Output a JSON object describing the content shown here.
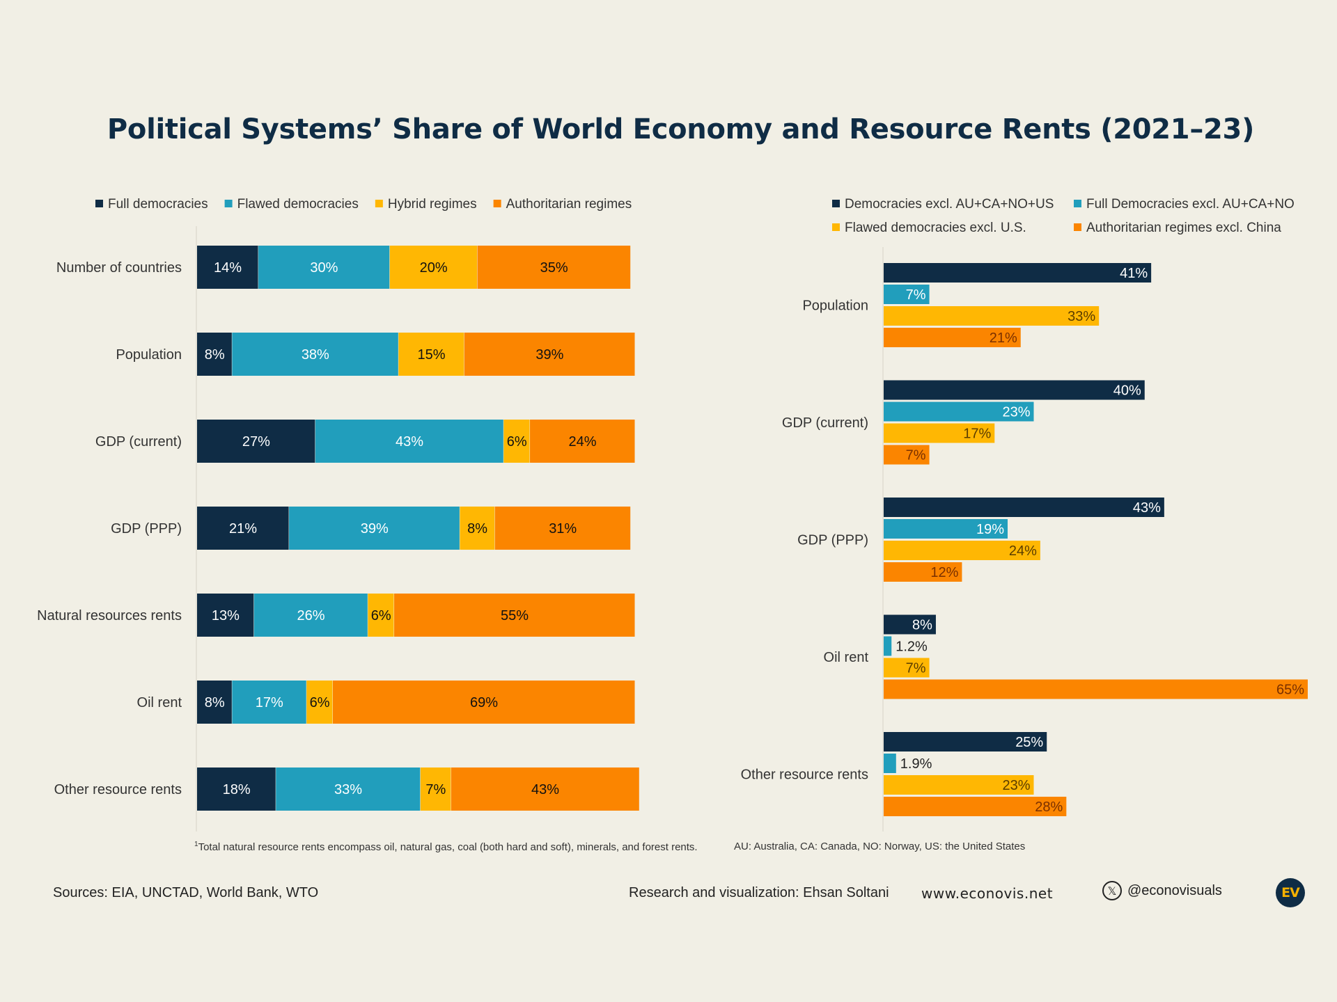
{
  "title": "Political Systems’ Share of World Economy and Resource Rents (2021–23)",
  "colors": {
    "full": "#0f2c45",
    "flawed": "#219ebc",
    "hybrid": "#ffb703",
    "authoritarian": "#fb8500"
  },
  "chart_data": [
    {
      "type": "bar",
      "orientation": "horizontal",
      "stacked": true,
      "unit": "%",
      "categories": [
        "Number of countries",
        "Population",
        "GDP (current)",
        "GDP (PPP)",
        "Natural resources rents",
        "Oil rent",
        "Other resource rents"
      ],
      "series": [
        {
          "name": "Full democracies",
          "color": "#0f2c45",
          "text_color": "#ffffff",
          "values": [
            14,
            8,
            27,
            21,
            13,
            8,
            18
          ]
        },
        {
          "name": "Flawed democracies",
          "color": "#219ebc",
          "text_color": "#ffffff",
          "values": [
            30,
            38,
            43,
            39,
            26,
            17,
            33
          ]
        },
        {
          "name": "Hybrid regimes",
          "color": "#ffb703",
          "text_color": "#111111",
          "values": [
            20,
            15,
            6,
            8,
            6,
            6,
            7
          ]
        },
        {
          "name": "Authoritarian regimes",
          "color": "#fb8500",
          "text_color": "#111111",
          "values": [
            35,
            39,
            24,
            31,
            55,
            69,
            43
          ]
        }
      ],
      "xlim": [
        0,
        100
      ],
      "legend": "top-left"
    },
    {
      "type": "bar",
      "orientation": "horizontal",
      "stacked": false,
      "unit": "%",
      "categories": [
        "Population",
        "GDP (current)",
        "GDP (PPP)",
        "Oil rent",
        "Other resource rents"
      ],
      "series": [
        {
          "name": "Democracies excl. AU+CA+NO+US",
          "color": "#0f2c45",
          "text_color": "#ffffff",
          "values": [
            41,
            40,
            43,
            8,
            25
          ],
          "labels": [
            "41%",
            "40%",
            "43%",
            "8%",
            "25%"
          ]
        },
        {
          "name": "Full Democracies excl. AU+CA+NO",
          "color": "#219ebc",
          "text_color": "#ffffff",
          "values": [
            7,
            23,
            19,
            1.2,
            1.9
          ],
          "labels": [
            "7%",
            "23%",
            "19%",
            "1.2%",
            "1.9%"
          ]
        },
        {
          "name": "Flawed democracies excl. U.S.",
          "color": "#ffb703",
          "text_color": "#5a3d00",
          "values": [
            33,
            17,
            24,
            7,
            23
          ],
          "labels": [
            "33%",
            "17%",
            "24%",
            "7%",
            "23%"
          ]
        },
        {
          "name": "Authoritarian regimes excl. China",
          "color": "#fb8500",
          "text_color": "#7a3000",
          "values": [
            21,
            7,
            12,
            65,
            28
          ],
          "labels": [
            "21%",
            "7%",
            "12%",
            "65%",
            "28%"
          ]
        }
      ],
      "xlim": [
        0,
        65
      ],
      "legend": "top"
    }
  ],
  "footnotes": {
    "left_marker": "1",
    "left": "Total natural resource rents encompass oil, natural gas, coal (both hard and soft), minerals, and forest rents.",
    "right": "AU: Australia, CA: Canada, NO: Norway, US: the United States"
  },
  "footer": {
    "sources": "Sources: EIA, UNCTAD, World Bank, WTO",
    "credit": "Research and visualization: Ehsan Soltani",
    "website": "www.econovis.net",
    "x_glyph": "𝕏",
    "handle": "@econovisuals",
    "logo_text": "EV"
  }
}
